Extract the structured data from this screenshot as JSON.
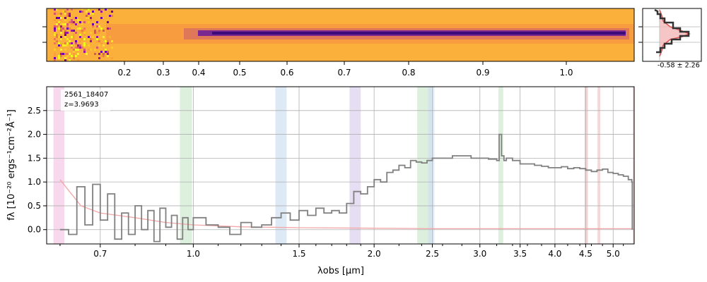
{
  "figure": {
    "object_id": "2561_18407",
    "redshift_label": "z=3.9693"
  },
  "colors": {
    "spectrum": "#808080",
    "error": "#f4a6a6",
    "grid": "#b0b0b0",
    "band_pink": "#f4c7e6",
    "band_green": "#cfe8cf",
    "band_blue": "#cfe0f0",
    "band_purple": "#dcd0ec",
    "band_red": "#f2c4c4",
    "image_background": "#fbb03b",
    "image_trace": "#6a1b9a"
  },
  "image_panel": {
    "type": "heatmap",
    "colormap": "plasma",
    "top_axis_ticks": [
      "0.2",
      "0.3",
      "0.4",
      "0.5",
      "0.6",
      "0.7",
      "0.8",
      "0.9",
      "1.0"
    ]
  },
  "profile_panel": {
    "label": "-0.58 ± 2.26"
  },
  "chart_data": {
    "type": "line",
    "drawstyle": "steps",
    "xlabel": "λobs [μm]",
    "ylabel": "fλ [10⁻²⁰ ergs⁻¹cm⁻²Å⁻¹]",
    "xlim": [
      0.57,
      5.42
    ],
    "ylim": [
      -0.3,
      3.0
    ],
    "x_ticks": [
      0.7,
      1.0,
      1.5,
      2.0,
      2.5,
      3.0,
      3.5,
      4.0,
      4.5,
      5.0
    ],
    "x_tick_labels": [
      "0.7",
      "1.0",
      "1.5",
      "2.0",
      "2.5",
      "3.0",
      "3.5",
      "4.0",
      "4.5",
      "5.0"
    ],
    "y_ticks": [
      0.0,
      0.5,
      1.0,
      1.5,
      2.0,
      2.5
    ],
    "y_tick_labels": [
      "0.0",
      "0.5",
      "1.0",
      "1.5",
      "2.0",
      "2.5"
    ],
    "grid": true,
    "legend": "top-left",
    "series": [
      {
        "x": [
          0.6,
          0.62,
          0.64,
          0.66,
          0.68,
          0.7,
          0.72,
          0.74,
          0.76,
          0.78,
          0.8,
          0.82,
          0.84,
          0.86,
          0.88,
          0.9,
          0.92,
          0.94,
          0.96,
          0.98,
          1.0,
          1.05,
          1.1,
          1.15,
          1.2,
          1.25,
          1.3,
          1.35,
          1.4,
          1.45,
          1.5,
          1.55,
          1.6,
          1.65,
          1.7,
          1.75,
          1.8,
          1.85,
          1.9,
          1.95,
          2.0,
          2.05,
          2.1,
          2.15,
          2.2,
          2.25,
          2.3,
          2.35,
          2.4,
          2.45,
          2.5,
          2.6,
          2.7,
          2.8,
          2.9,
          3.0,
          3.1,
          3.2,
          3.23,
          3.26,
          3.29,
          3.32,
          3.4,
          3.5,
          3.6,
          3.7,
          3.8,
          3.9,
          4.0,
          4.1,
          4.2,
          4.3,
          4.4,
          4.5,
          4.6,
          4.7,
          4.8,
          4.9,
          5.0,
          5.1,
          5.2,
          5.3,
          5.37,
          5.38
        ],
        "y": [
          0.0,
          -0.1,
          0.9,
          0.1,
          0.95,
          0.2,
          0.75,
          -0.2,
          0.35,
          -0.1,
          0.5,
          0.0,
          0.4,
          -0.25,
          0.45,
          0.05,
          0.3,
          -0.2,
          0.25,
          0.0,
          0.25,
          0.1,
          0.05,
          -0.1,
          0.15,
          0.05,
          0.1,
          0.25,
          0.35,
          0.2,
          0.4,
          0.3,
          0.45,
          0.35,
          0.4,
          0.35,
          0.55,
          0.8,
          0.75,
          0.9,
          1.05,
          1.0,
          1.2,
          1.25,
          1.35,
          1.3,
          1.45,
          1.42,
          1.4,
          1.45,
          1.5,
          1.5,
          1.55,
          1.55,
          1.5,
          1.5,
          1.48,
          1.45,
          2.0,
          1.55,
          1.45,
          1.5,
          1.45,
          1.38,
          1.38,
          1.35,
          1.33,
          1.3,
          1.3,
          1.32,
          1.28,
          1.3,
          1.28,
          1.25,
          1.22,
          1.25,
          1.27,
          1.2,
          1.18,
          1.15,
          1.12,
          1.05,
          1.0,
          0.0
        ]
      },
      {
        "x": [
          0.6,
          0.65,
          0.7,
          0.8,
          0.9,
          1.0,
          1.2,
          1.5,
          2.0,
          2.5,
          3.0,
          3.5,
          4.0,
          4.5,
          5.0,
          5.4
        ],
        "y": [
          1.05,
          0.5,
          0.35,
          0.25,
          0.15,
          0.1,
          0.06,
          0.04,
          0.03,
          0.02,
          0.02,
          0.02,
          0.02,
          0.02,
          0.02,
          0.02
        ]
      }
    ],
    "bands": [
      {
        "x": [
          0.585,
          0.61
        ],
        "color": "pink"
      },
      {
        "x": [
          0.95,
          0.995
        ],
        "color": "green"
      },
      {
        "x": [
          1.37,
          1.43
        ],
        "color": "blue"
      },
      {
        "x": [
          1.82,
          1.9
        ],
        "color": "purple"
      },
      {
        "x": [
          2.36,
          2.49
        ],
        "color": "green"
      },
      {
        "x": [
          2.46,
          2.52
        ],
        "color": "blue"
      },
      {
        "x": [
          3.22,
          3.28
        ],
        "color": "green"
      },
      {
        "x": [
          4.48,
          4.54
        ],
        "color": "red"
      },
      {
        "x": [
          4.71,
          4.76
        ],
        "color": "red"
      },
      {
        "x": [
          5.39,
          5.42
        ],
        "color": "red"
      }
    ]
  }
}
